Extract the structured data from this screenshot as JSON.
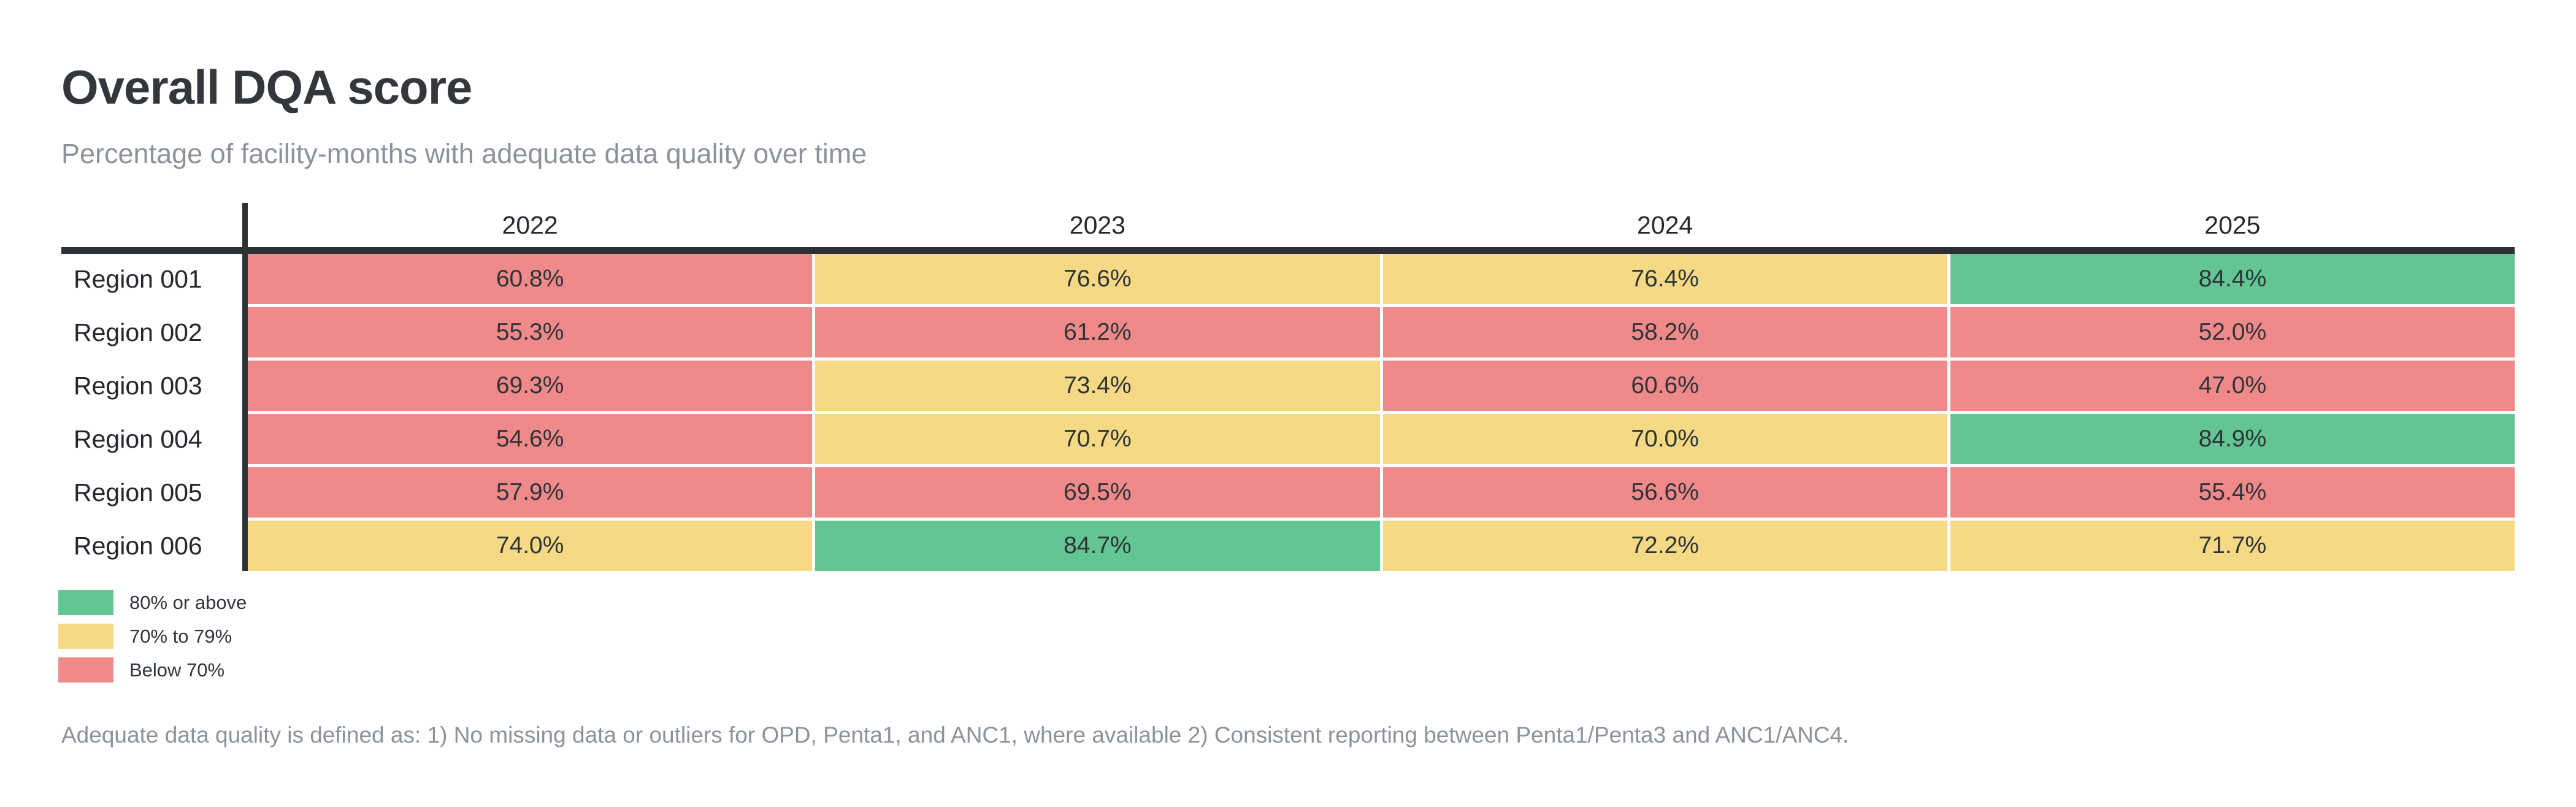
{
  "chart_data": {
    "type": "heatmap",
    "title": "Overall DQA score",
    "subtitle": "Percentage of facility-months with adequate data quality over time",
    "columns": [
      "2022",
      "2023",
      "2024",
      "2025"
    ],
    "rows": [
      "Region 001",
      "Region 002",
      "Region 003",
      "Region 004",
      "Region 005",
      "Region 006"
    ],
    "values": [
      [
        60.8,
        76.6,
        76.4,
        84.4
      ],
      [
        55.3,
        61.2,
        58.2,
        52.0
      ],
      [
        69.3,
        73.4,
        60.6,
        47.0
      ],
      [
        54.6,
        70.7,
        70.0,
        84.9
      ],
      [
        57.9,
        69.5,
        56.6,
        55.4
      ],
      [
        74.0,
        84.7,
        72.2,
        71.7
      ]
    ],
    "value_suffix": "%",
    "value_decimals": 1,
    "legend": [
      {
        "key": "high",
        "label": "80% or above",
        "color": "#62c592",
        "min": 80
      },
      {
        "key": "mid",
        "label": "70% to 79%",
        "color": "#f6d985",
        "min": 70
      },
      {
        "key": "low",
        "label": "Below 70%",
        "color": "#f08a8a",
        "min": 0
      }
    ],
    "legend_position": "bottom-left",
    "grid": false,
    "footnote": "Adequate data quality is defined as: 1) No missing data or outliers for OPD, Penta1, and ANC1, where available 2) Consistent reporting between Penta1/Penta3 and ANC1/ANC4."
  }
}
